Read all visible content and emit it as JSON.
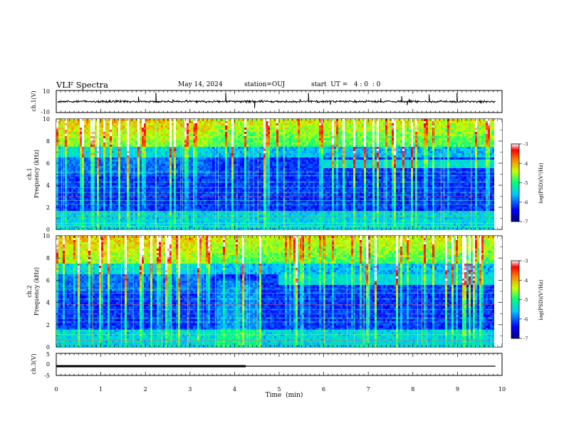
{
  "header": {
    "title": "VLF Spectra",
    "date": "May 14, 2024",
    "station": "station=OUJ",
    "start_ut": "start  UT =   4 : 0  : 0"
  },
  "chart_data": [
    {
      "type": "line",
      "name": "waveform-ch1",
      "ylabel": "ch.1(V)",
      "ylim": [
        -10,
        10
      ],
      "yticks": [
        "10",
        "-10"
      ],
      "xlim": [
        0,
        10
      ],
      "baseline": 0,
      "color": "#000000"
    },
    {
      "type": "heatmap",
      "name": "spectrogram-ch1",
      "ylabel_line1": "ch.1",
      "ylabel_line2": "Frequency (kHz)",
      "ylim": [
        0,
        10
      ],
      "yticks": [
        "0",
        "2",
        "4",
        "6",
        "8",
        "10"
      ],
      "xlim": [
        0,
        9.85
      ],
      "emission_band_khz": [
        5.5,
        6.3
      ],
      "emission_start_min": 6,
      "colorbar": {
        "label": "log(PSD)(V²/Hz)",
        "range": [
          -7,
          -3
        ],
        "ticks": [
          "-3",
          "-4",
          "-5",
          "-6",
          "-7"
        ]
      }
    },
    {
      "type": "heatmap",
      "name": "spectrogram-ch2",
      "ylabel_line1": "ch.2",
      "ylabel_line2": "Frequency (kHz)",
      "ylim": [
        0,
        10
      ],
      "yticks": [
        "0",
        "2",
        "4",
        "6",
        "8",
        "10"
      ],
      "xlim": [
        0,
        9.85
      ],
      "emission_band_khz": [
        5.5,
        6.5
      ],
      "emission_start_min": 5,
      "colorbar": {
        "label": "log(PSD)(V²/Hz)",
        "range": [
          -7,
          -3
        ],
        "ticks": [
          "-3",
          "-4",
          "-5",
          "-6",
          "-7"
        ]
      }
    },
    {
      "type": "line",
      "name": "ch3",
      "ylabel": "ch.3(V)",
      "ylim": [
        -5,
        5
      ],
      "yticks": [
        "5",
        "0",
        "-5"
      ],
      "xlim": [
        0,
        10
      ],
      "segments": [
        {
          "x": [
            0,
            4.25
          ],
          "y": [
            -0.8,
            -0.8
          ],
          "width": "thick"
        },
        {
          "x": [
            4.25,
            9.85
          ],
          "y": [
            -0.8,
            -0.8
          ],
          "width": "thin"
        }
      ]
    }
  ],
  "xaxis": {
    "label": "Time  (min)",
    "ticks": [
      "0",
      "1",
      "2",
      "3",
      "4",
      "5",
      "6",
      "7",
      "8",
      "9",
      "10"
    ],
    "range": [
      0,
      10
    ]
  }
}
